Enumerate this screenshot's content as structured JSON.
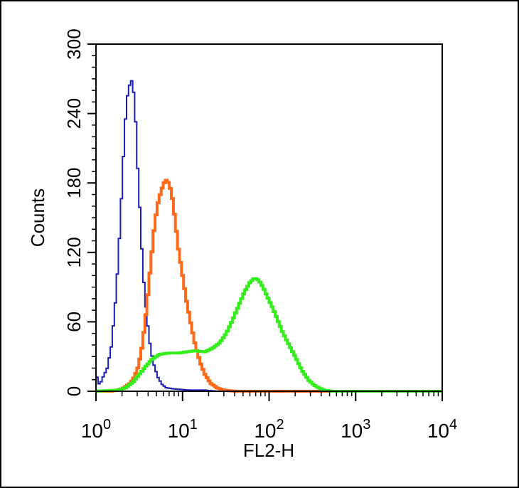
{
  "chart_data": {
    "type": "line",
    "title": "",
    "xlabel": "FL2-H",
    "ylabel": "Counts",
    "x_scale": "log",
    "xlim": [
      1,
      10000
    ],
    "ylim": [
      0,
      300
    ],
    "x_ticks": [
      {
        "value": 1,
        "base": "10",
        "exp": "0"
      },
      {
        "value": 10,
        "base": "10",
        "exp": "1"
      },
      {
        "value": 100,
        "base": "10",
        "exp": "2"
      },
      {
        "value": 1000,
        "base": "10",
        "exp": "3"
      },
      {
        "value": 10000,
        "base": "10",
        "exp": "4"
      }
    ],
    "y_ticks": [
      "0",
      "60",
      "120",
      "180",
      "240",
      "300"
    ],
    "grid": false,
    "legend": "none",
    "series": [
      {
        "color": "#1a1ab8",
        "style": "thin-step",
        "points": [
          [
            1.0,
            15
          ],
          [
            1.1,
            5
          ],
          [
            1.2,
            12
          ],
          [
            1.35,
            20
          ],
          [
            1.5,
            38
          ],
          [
            1.65,
            70
          ],
          [
            1.8,
            110
          ],
          [
            1.95,
            160
          ],
          [
            2.1,
            210
          ],
          [
            2.25,
            250
          ],
          [
            2.4,
            262
          ],
          [
            2.55,
            270
          ],
          [
            2.7,
            262
          ],
          [
            2.85,
            240
          ],
          [
            3.0,
            200
          ],
          [
            3.2,
            160
          ],
          [
            3.4,
            120
          ],
          [
            3.6,
            90
          ],
          [
            3.8,
            70
          ],
          [
            4.0,
            55
          ],
          [
            4.3,
            35
          ],
          [
            4.7,
            22
          ],
          [
            5.2,
            12
          ],
          [
            5.8,
            6
          ],
          [
            6.5,
            3
          ],
          [
            8,
            2
          ],
          [
            12,
            1
          ],
          [
            18,
            1
          ],
          [
            25,
            0
          ],
          [
            10000,
            0
          ]
        ]
      },
      {
        "color": "#ff6a1a",
        "style": "thick-step",
        "points": [
          [
            1.0,
            0
          ],
          [
            1.5,
            0
          ],
          [
            2.0,
            2
          ],
          [
            2.5,
            7
          ],
          [
            2.8,
            13
          ],
          [
            3.1,
            22
          ],
          [
            3.4,
            38
          ],
          [
            3.7,
            60
          ],
          [
            4.0,
            85
          ],
          [
            4.3,
            110
          ],
          [
            4.7,
            140
          ],
          [
            5.1,
            160
          ],
          [
            5.6,
            172
          ],
          [
            6.1,
            180
          ],
          [
            6.6,
            183
          ],
          [
            7.1,
            178
          ],
          [
            7.7,
            165
          ],
          [
            8.3,
            145
          ],
          [
            9.0,
            122
          ],
          [
            10,
            100
          ],
          [
            11,
            80
          ],
          [
            12.5,
            58
          ],
          [
            14,
            40
          ],
          [
            16,
            25
          ],
          [
            18,
            15
          ],
          [
            21,
            7
          ],
          [
            25,
            3
          ],
          [
            30,
            1
          ],
          [
            40,
            0
          ],
          [
            300,
            0
          ],
          [
            10000,
            0
          ]
        ]
      },
      {
        "color": "#33ee1a",
        "style": "thick-step",
        "points": [
          [
            1.0,
            0
          ],
          [
            1.8,
            1
          ],
          [
            2.2,
            3
          ],
          [
            2.7,
            8
          ],
          [
            3.2,
            15
          ],
          [
            3.8,
            22
          ],
          [
            4.5,
            28
          ],
          [
            5.5,
            32
          ],
          [
            7,
            33
          ],
          [
            9,
            33
          ],
          [
            11,
            34
          ],
          [
            14,
            35
          ],
          [
            18,
            34
          ],
          [
            22,
            37
          ],
          [
            27,
            42
          ],
          [
            32,
            50
          ],
          [
            38,
            62
          ],
          [
            45,
            75
          ],
          [
            52,
            86
          ],
          [
            60,
            94
          ],
          [
            68,
            98
          ],
          [
            76,
            96
          ],
          [
            85,
            90
          ],
          [
            95,
            82
          ],
          [
            110,
            72
          ],
          [
            125,
            62
          ],
          [
            145,
            50
          ],
          [
            170,
            40
          ],
          [
            200,
            30
          ],
          [
            240,
            18
          ],
          [
            290,
            9
          ],
          [
            350,
            4
          ],
          [
            430,
            1
          ],
          [
            550,
            0
          ],
          [
            10000,
            0
          ]
        ]
      }
    ]
  }
}
